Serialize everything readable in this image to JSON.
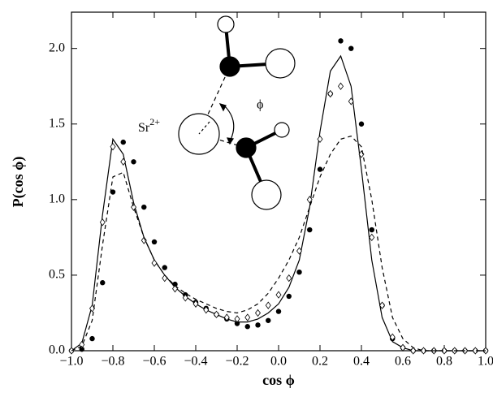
{
  "chart_data": {
    "type": "line",
    "xlabel": "cos ϕ",
    "ylabel": "P(cos ϕ)",
    "annotations": {
      "ion": "Sr",
      "charge": "2+",
      "angle": "ϕ"
    },
    "x": [
      -1.0,
      -0.95,
      -0.9,
      -0.85,
      -0.8,
      -0.75,
      -0.7,
      -0.65,
      -0.6,
      -0.55,
      -0.5,
      -0.45,
      -0.4,
      -0.35,
      -0.3,
      -0.25,
      -0.2,
      -0.15,
      -0.1,
      -0.05,
      0.0,
      0.05,
      0.1,
      0.15,
      0.2,
      0.25,
      0.3,
      0.35,
      0.4,
      0.45,
      0.5,
      0.55,
      0.6,
      0.65,
      0.7,
      0.75,
      0.8,
      0.85,
      0.9,
      0.95,
      1.0
    ],
    "series": [
      {
        "color": "#000000",
        "style": "filled-circle",
        "values": [
          0,
          0.01,
          0.08,
          0.45,
          1.05,
          1.38,
          1.25,
          0.95,
          0.72,
          0.55,
          0.44,
          0.37,
          0.32,
          0.28,
          0.24,
          0.21,
          0.18,
          0.16,
          0.17,
          0.2,
          0.26,
          0.36,
          0.52,
          0.8,
          1.2,
          1.7,
          2.05,
          2.0,
          1.5,
          0.8,
          0.3,
          0.08,
          0.02,
          0,
          0,
          0,
          0,
          0,
          0,
          0,
          0
        ]
      },
      {
        "color": "#000000",
        "style": "solid",
        "values": [
          0,
          0.05,
          0.3,
          0.9,
          1.4,
          1.3,
          0.98,
          0.75,
          0.6,
          0.5,
          0.42,
          0.36,
          0.31,
          0.27,
          0.24,
          0.21,
          0.19,
          0.19,
          0.21,
          0.25,
          0.31,
          0.42,
          0.6,
          0.95,
          1.45,
          1.85,
          1.95,
          1.75,
          1.2,
          0.6,
          0.22,
          0.06,
          0.02,
          0,
          0,
          0,
          0,
          0,
          0,
          0,
          0
        ]
      },
      {
        "color": "#000000",
        "style": "open-diamond",
        "values": [
          0,
          0.04,
          0.28,
          0.85,
          1.35,
          1.25,
          0.95,
          0.73,
          0.58,
          0.48,
          0.41,
          0.35,
          0.31,
          0.27,
          0.24,
          0.22,
          0.21,
          0.22,
          0.25,
          0.3,
          0.37,
          0.48,
          0.66,
          1.0,
          1.4,
          1.7,
          1.75,
          1.65,
          1.3,
          0.75,
          0.3,
          0.09,
          0.02,
          0,
          0,
          0,
          0,
          0,
          0,
          0,
          0
        ]
      },
      {
        "color": "#000000",
        "style": "dashed",
        "values": [
          0,
          0.03,
          0.2,
          0.7,
          1.15,
          1.18,
          0.95,
          0.75,
          0.6,
          0.5,
          0.43,
          0.38,
          0.34,
          0.31,
          0.28,
          0.26,
          0.25,
          0.27,
          0.31,
          0.38,
          0.48,
          0.6,
          0.75,
          0.95,
          1.15,
          1.3,
          1.4,
          1.42,
          1.35,
          1.0,
          0.55,
          0.22,
          0.08,
          0.02,
          0,
          0,
          0,
          0,
          0,
          0,
          0
        ]
      }
    ],
    "xlim": [
      -1.0,
      1.0
    ],
    "ylim": [
      0,
      2.24
    ],
    "xticks": [
      {
        "value": -1.0,
        "label": "−1.0"
      },
      {
        "value": -0.8,
        "label": "−0.8"
      },
      {
        "value": -0.6,
        "label": "−0.6"
      },
      {
        "value": -0.4,
        "label": "−0.4"
      },
      {
        "value": -0.2,
        "label": "−0.2"
      },
      {
        "value": 0.0,
        "label": "0.0"
      },
      {
        "value": 0.2,
        "label": "0.2"
      },
      {
        "value": 0.4,
        "label": "0.4"
      },
      {
        "value": 0.6,
        "label": "0.6"
      },
      {
        "value": 0.8,
        "label": "0.8"
      },
      {
        "value": 1.0,
        "label": "1.0"
      }
    ],
    "yticks": [
      {
        "value": 0.0,
        "label": "0.0"
      },
      {
        "value": 0.5,
        "label": "0.5"
      },
      {
        "value": 1.0,
        "label": "1.0"
      },
      {
        "value": 1.5,
        "label": "1.5"
      },
      {
        "value": 2.0,
        "label": "2.0"
      }
    ],
    "grid": false
  }
}
